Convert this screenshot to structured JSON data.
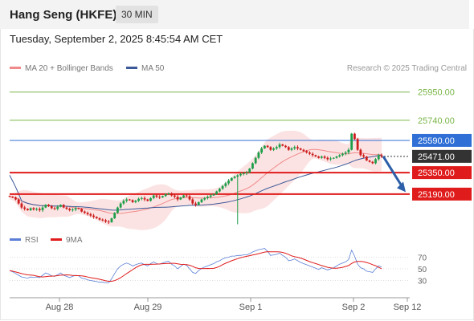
{
  "header": {
    "title": "Hang Seng (HKFE)",
    "timeframe": "30 MIN"
  },
  "timestamp": "Tuesday, September 2, 2025 8:45:54 AM CET",
  "legend": {
    "bollinger": "MA 20 + Bollinger Bands",
    "ma50": "MA 50",
    "rsi": "RSI",
    "rsi_ma": "9MA"
  },
  "copyright": "Research © 2025 Trading Central",
  "colors": {
    "up": "#1e9e4a",
    "down": "#cc1e1e",
    "resistance": "#7ab648",
    "pivot": "#2f6fd6",
    "support": "#e01b1b",
    "last": "#333333",
    "ma50": "#3c5a99",
    "bollinger": "#f08a8a"
  },
  "chart_data": {
    "type": "candlestick",
    "interval": "30 MIN",
    "x_ticks": [
      "Aug 28",
      "Aug 29",
      "Sep 1",
      "Sep 2",
      "Sep 12"
    ],
    "y_range": [
      24950,
      26050
    ],
    "price_levels": [
      {
        "label": "25950.00",
        "value": 25950,
        "kind": "resistance"
      },
      {
        "label": "25740.00",
        "value": 25740,
        "kind": "resistance"
      },
      {
        "label": "25590.00",
        "value": 25590,
        "kind": "pivot"
      },
      {
        "label": "25471.00",
        "value": 25471,
        "kind": "last"
      },
      {
        "label": "25350.00",
        "value": 25350,
        "kind": "support"
      },
      {
        "label": "25190.00",
        "value": 25190,
        "kind": "support"
      }
    ],
    "forecast_arrow": {
      "from": 25471,
      "to": 25205
    },
    "closes": [
      25170,
      25165,
      25150,
      25120,
      25090,
      25080,
      25070,
      25085,
      25075,
      25080,
      25070,
      25090,
      25110,
      25100,
      25085,
      25080,
      25095,
      25110,
      25090,
      25080,
      25070,
      25075,
      25085,
      25080,
      25060,
      25050,
      25040,
      25030,
      25020,
      25010,
      25000,
      24995,
      24985,
      24980,
      25010,
      25050,
      25090,
      25120,
      25140,
      25150,
      25145,
      25130,
      25140,
      25155,
      25160,
      25150,
      25140,
      25160,
      25180,
      25170,
      25165,
      25175,
      25190,
      25195,
      25180,
      25170,
      25150,
      25165,
      25180,
      25175,
      25150,
      25120,
      25110,
      25130,
      25150,
      25160,
      25170,
      25180,
      25190,
      25210,
      25230,
      25250,
      25270,
      25290,
      25310,
      25320,
      25330,
      25340,
      25345,
      25350,
      25380,
      25420,
      25460,
      25500,
      25530,
      25550,
      25540,
      25520,
      25530,
      25540,
      25560,
      25550,
      25540,
      25520,
      25530,
      25540,
      25530,
      25520,
      25510,
      25500,
      25490,
      25480,
      25470,
      25460,
      25470,
      25460,
      25450,
      25455,
      25460,
      25470,
      25480,
      25490,
      25500,
      25520,
      25640,
      25600,
      25520,
      25480,
      25470,
      25440,
      25430,
      25420,
      25450,
      25480,
      25471
    ],
    "bollinger": {
      "period": 20,
      "std": 2
    },
    "ma_period": 50,
    "rsi": {
      "levels": [
        70,
        50,
        30
      ],
      "range": [
        10,
        90
      ],
      "values": [
        47,
        45,
        42,
        39,
        36,
        35,
        34,
        36,
        35,
        36,
        35,
        39,
        43,
        41,
        38,
        37,
        40,
        43,
        39,
        37,
        35,
        37,
        39,
        38,
        34,
        33,
        31,
        30,
        29,
        28,
        27,
        27,
        26,
        26,
        33,
        42,
        50,
        55,
        58,
        60,
        58,
        55,
        57,
        59,
        60,
        57,
        55,
        59,
        62,
        59,
        58,
        60,
        62,
        63,
        58,
        55,
        50,
        54,
        58,
        56,
        50,
        44,
        42,
        47,
        51,
        53,
        55,
        57,
        59,
        62,
        64,
        67,
        69,
        70,
        72,
        72,
        73,
        73,
        74,
        74,
        76,
        79,
        81,
        83,
        84,
        85,
        80,
        73,
        74,
        75,
        77,
        73,
        70,
        64,
        65,
        67,
        64,
        61,
        59,
        57,
        55,
        53,
        51,
        49,
        52,
        50,
        48,
        50,
        52,
        55,
        58,
        60,
        62,
        66,
        82,
        72,
        58,
        52,
        50,
        46,
        45,
        44,
        50,
        55,
        53
      ]
    }
  }
}
